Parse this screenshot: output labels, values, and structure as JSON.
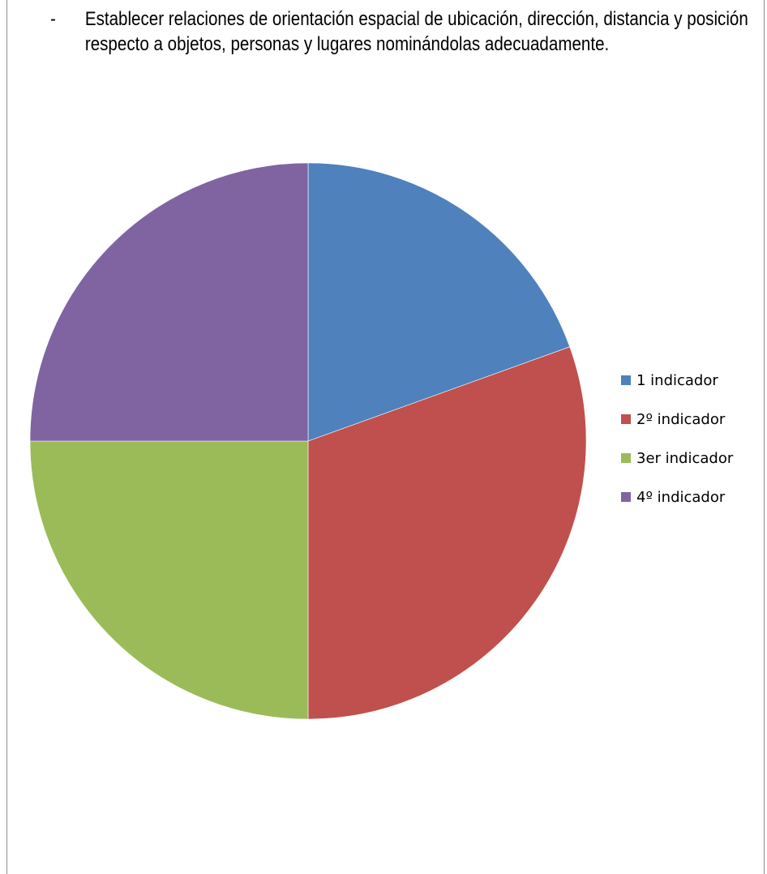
{
  "text_block": {
    "bullet": "-",
    "text": "Establecer relaciones de orientación espacial de ubicación, dirección, distancia y posición respecto a objetos, personas y lugares nominándolas adecuadamente."
  },
  "chart_data": {
    "type": "pie",
    "labels": [
      "1 indicador",
      "2º indicador",
      "3er indicador",
      "4º indicador"
    ],
    "values": [
      19.5,
      30.5,
      25,
      25
    ],
    "value_unit": "percent",
    "start_angle": "12 o'clock",
    "direction": "clockwise",
    "legend_position": "right",
    "colors": [
      "#4f81bd",
      "#c0504d",
      "#9bbb59",
      "#8064a2"
    ]
  }
}
